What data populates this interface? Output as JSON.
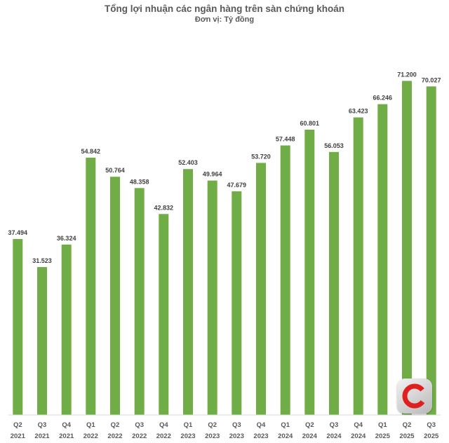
{
  "chart_data": {
    "type": "bar",
    "title": "Tổng lợi nhuận các ngân hàng trên sàn chứng khoán",
    "subtitle": "Đơn vị: Tỷ đồng",
    "categories": [
      [
        "Q2",
        "2021"
      ],
      [
        "Q3",
        "2021"
      ],
      [
        "Q4",
        "2021"
      ],
      [
        "Q1",
        "2022"
      ],
      [
        "Q2",
        "2022"
      ],
      [
        "Q3",
        "2022"
      ],
      [
        "Q4",
        "2022"
      ],
      [
        "Q1",
        "2023"
      ],
      [
        "Q2",
        "2023"
      ],
      [
        "Q3",
        "2023"
      ],
      [
        "Q4",
        "2023"
      ],
      [
        "Q1",
        "2024"
      ],
      [
        "Q2",
        "2024"
      ],
      [
        "Q3",
        "2024"
      ],
      [
        "Q4",
        "2024"
      ],
      [
        "Q1",
        "2025"
      ],
      [
        "Q2",
        "2025"
      ],
      [
        "Q3",
        "2025"
      ]
    ],
    "values": [
      37494,
      31523,
      36324,
      54842,
      50764,
      48358,
      42832,
      52403,
      49964,
      47679,
      53720,
      57448,
      60801,
      56053,
      63423,
      66246,
      71200,
      70027
    ],
    "value_labels": [
      "37.494",
      "31.523",
      "36.324",
      "54.842",
      "50.764",
      "48.358",
      "42.832",
      "52.403",
      "49.964",
      "47.679",
      "53.720",
      "57.448",
      "60.801",
      "56.053",
      "63.423",
      "66.246",
      "71.200",
      "70.027"
    ],
    "ylim": [
      0,
      75000
    ],
    "bar_color": "#70ad47",
    "grid": false,
    "legend": "none"
  },
  "logo": {
    "icon": "cafef-logo-icon",
    "colors": {
      "ring": "#e02020",
      "bg": "#d9d9d9"
    }
  }
}
